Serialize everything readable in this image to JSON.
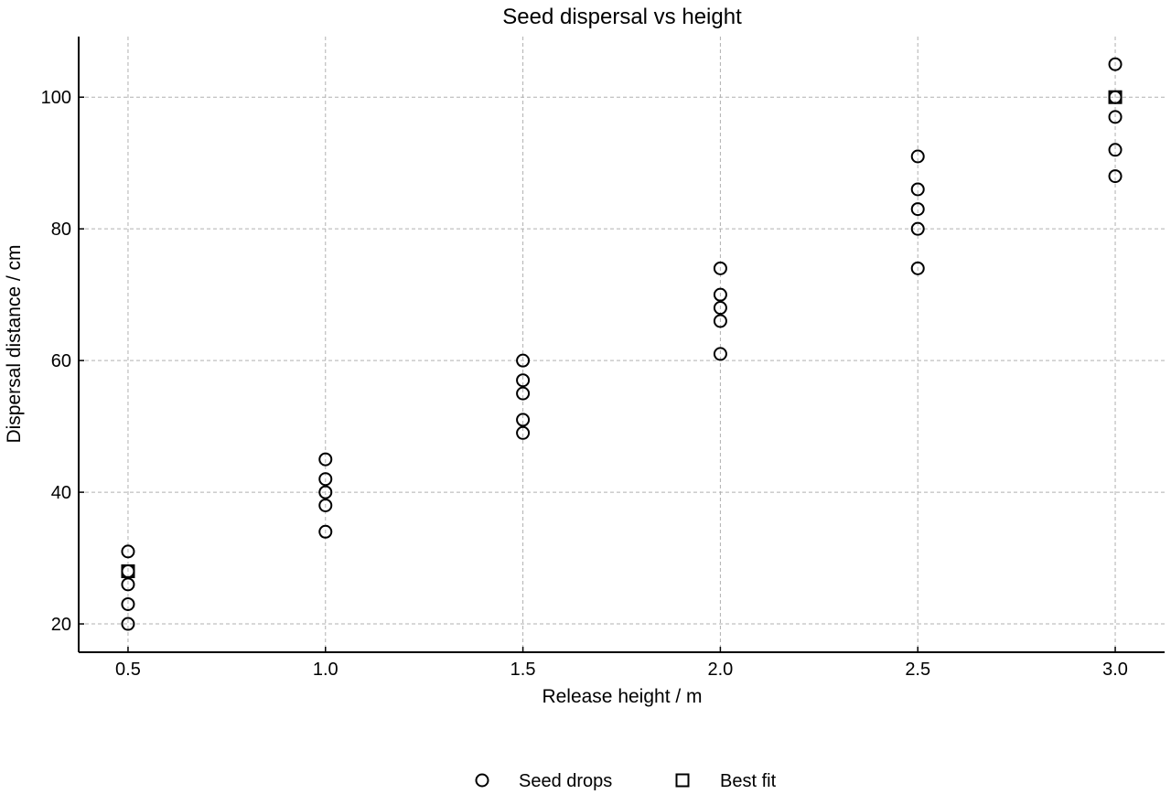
{
  "chart_data": {
    "type": "scatter",
    "title": "Seed dispersal vs height",
    "xlabel": "Release height / m",
    "ylabel": "Dispersal distance / cm",
    "xlim": [
      0.375,
      3.125
    ],
    "ylim": [
      15.7,
      109.2
    ],
    "xticks": [
      0.5,
      1.0,
      1.5,
      2.0,
      2.5,
      3.0
    ],
    "xtick_labels": [
      "0.5",
      "1.0",
      "1.5",
      "2.0",
      "2.5",
      "3.0"
    ],
    "yticks": [
      20,
      40,
      60,
      80,
      100
    ],
    "ytick_labels": [
      "20",
      "40",
      "60",
      "80",
      "100"
    ],
    "grid": true,
    "legend_position": "bottom-center",
    "series": [
      {
        "name": "Seed drops",
        "marker": "circle",
        "color": "#000000",
        "points": [
          [
            0.5,
            31
          ],
          [
            0.5,
            28
          ],
          [
            0.5,
            26
          ],
          [
            0.5,
            23
          ],
          [
            0.5,
            20
          ],
          [
            1.0,
            45
          ],
          [
            1.0,
            42
          ],
          [
            1.0,
            40
          ],
          [
            1.0,
            38
          ],
          [
            1.0,
            34
          ],
          [
            1.5,
            60
          ],
          [
            1.5,
            57
          ],
          [
            1.5,
            55
          ],
          [
            1.5,
            51
          ],
          [
            1.5,
            49
          ],
          [
            2.0,
            74
          ],
          [
            2.0,
            70
          ],
          [
            2.0,
            68
          ],
          [
            2.0,
            66
          ],
          [
            2.0,
            61
          ],
          [
            2.5,
            91
          ],
          [
            2.5,
            86
          ],
          [
            2.5,
            83
          ],
          [
            2.5,
            80
          ],
          [
            2.5,
            74
          ],
          [
            3.0,
            105
          ],
          [
            3.0,
            100
          ],
          [
            3.0,
            97
          ],
          [
            3.0,
            92
          ],
          [
            3.0,
            88
          ]
        ]
      },
      {
        "name": "Best fit",
        "marker": "square",
        "color": "#000000",
        "points": [
          [
            0.5,
            28
          ],
          [
            3.0,
            100
          ]
        ]
      }
    ]
  }
}
